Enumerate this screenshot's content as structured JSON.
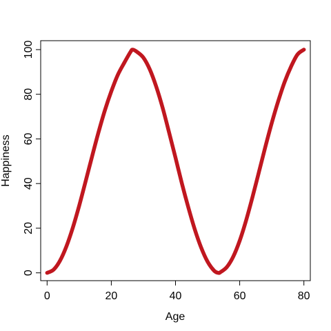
{
  "chart_data": {
    "type": "line",
    "title": "",
    "xlabel": "Age",
    "ylabel": "Happiness",
    "xlim": [
      -2,
      82
    ],
    "ylim": [
      -3.5,
      104
    ],
    "xticks": [
      0,
      20,
      40,
      60,
      80
    ],
    "yticks": [
      0,
      20,
      40,
      60,
      80,
      100
    ],
    "grid": false,
    "series": [
      {
        "name": "Happiness",
        "color": "#c0171f",
        "x": [
          0,
          2,
          4,
          6,
          8,
          10,
          12,
          14,
          16,
          18,
          20,
          22,
          24,
          26,
          26.7,
          28,
          30,
          32,
          34,
          36,
          38,
          40,
          42,
          44,
          46,
          48,
          50,
          52,
          53.3,
          54,
          56,
          58,
          60,
          62,
          64,
          66,
          68,
          70,
          72,
          74,
          76,
          78,
          80
        ],
        "y": [
          0,
          1.4,
          5.4,
          11.8,
          20.2,
          30.1,
          41.0,
          52.1,
          62.9,
          72.8,
          81.3,
          88.6,
          94.0,
          99.0,
          100,
          99.0,
          96.4,
          91.1,
          83.4,
          73.9,
          62.9,
          51.6,
          40.0,
          29.3,
          19.5,
          11.3,
          5.0,
          1.0,
          0,
          0.3,
          2.6,
          7.3,
          14.4,
          23.5,
          34.0,
          45.2,
          56.5,
          67.2,
          76.9,
          85.5,
          92.4,
          97.8,
          100
        ]
      }
    ]
  }
}
